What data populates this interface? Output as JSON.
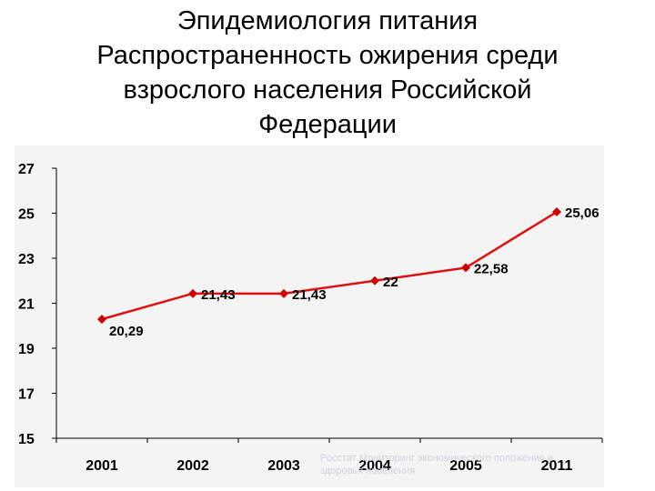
{
  "slide": {
    "title_lines": [
      "Эпидемиология питания",
      "Распространенность ожирения среди",
      "взрослого населения Российской",
      "Федерации"
    ]
  },
  "chart_data": {
    "type": "line",
    "title": "",
    "xlabel": "",
    "ylabel": "",
    "categories": [
      "2001",
      "2002",
      "2003",
      "2004",
      "2005",
      "2011"
    ],
    "values": [
      20.29,
      21.43,
      21.43,
      22,
      22.58,
      25.06
    ],
    "data_labels": [
      "20,29",
      "21,43",
      "21,43",
      "22",
      "22,58",
      "25,06"
    ],
    "y_ticks": [
      "27",
      "25",
      "23",
      "21",
      "19",
      "17",
      "15"
    ],
    "ylim": [
      15,
      27
    ],
    "grid": false,
    "legend": "none",
    "line_color": "#e01010",
    "marker_color": "#cc0000",
    "background_color": "#f4f4f4",
    "source_note": [
      "Росстат Мониторинг экономического положения и",
      "здоровья населения"
    ]
  }
}
